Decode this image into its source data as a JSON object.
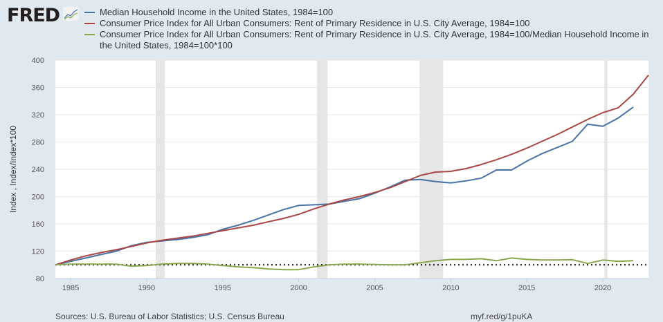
{
  "header": {
    "logo": "FRED"
  },
  "footer": {
    "sources": "Sources: U.S. Bureau of Labor Statistics; U.S. Census Bureau",
    "link": "myf.red/g/1puKA"
  },
  "chart_data": {
    "type": "line",
    "ylabel": "Index , Index/Index*100",
    "xlim": [
      1984,
      2023
    ],
    "ylim": [
      80,
      400
    ],
    "yticks": [
      80,
      120,
      160,
      200,
      240,
      280,
      320,
      360,
      400
    ],
    "xticks": [
      1985,
      1990,
      1995,
      2000,
      2005,
      2010,
      2015,
      2020
    ],
    "grid": true,
    "legend_position": "top",
    "recessions": [
      [
        1990.6,
        1991.2
      ],
      [
        2001.2,
        2001.9
      ],
      [
        2007.95,
        2009.5
      ],
      [
        2020.1,
        2020.3
      ]
    ],
    "reference_line": {
      "value": 100,
      "style": "dotted"
    },
    "x": [
      1984,
      1985,
      1986,
      1987,
      1988,
      1989,
      1990,
      1991,
      1992,
      1993,
      1994,
      1995,
      1996,
      1997,
      1998,
      1999,
      2000,
      2001,
      2002,
      2003,
      2004,
      2005,
      2006,
      2007,
      2008,
      2009,
      2010,
      2011,
      2012,
      2013,
      2014,
      2015,
      2016,
      2017,
      2018,
      2019,
      2020,
      2021,
      2022,
      2023
    ],
    "series": [
      {
        "name": "Median Household Income in the United States, 1984=100",
        "color": "#4572a7",
        "values": [
          100,
          105,
          110,
          115,
          120,
          128,
          133,
          135,
          137,
          140,
          144,
          152,
          158,
          165,
          173,
          181,
          187,
          188,
          189,
          193,
          197,
          205,
          214,
          224,
          225,
          222,
          220,
          223,
          227,
          239,
          239,
          252,
          263,
          272,
          281,
          306,
          303,
          315,
          331,
          null
        ]
      },
      {
        "name": "Consumer Price Index for All Urban Consumers: Rent of Primary Residence in U.S. City Average, 1984=100",
        "color": "#aa4643",
        "values": [
          100,
          107,
          113,
          118,
          122,
          127,
          132,
          136,
          139,
          142,
          146,
          150,
          154,
          158,
          163,
          168,
          174,
          182,
          189,
          195,
          200,
          206,
          213,
          222,
          231,
          236,
          237,
          241,
          247,
          254,
          262,
          271,
          281,
          291,
          302,
          313,
          323,
          330,
          350,
          378
        ]
      },
      {
        "name": "Consumer Price Index for All Urban Consumers: Rent of Primary Residence in U.S. City Average, 1984=100/Median Household Income in the United States, 1984=100*100",
        "color": "#89a54e",
        "values": [
          100,
          101,
          101,
          101,
          101,
          98,
          99,
          101,
          102,
          102,
          101,
          99,
          97,
          96,
          94,
          93,
          93,
          97,
          100,
          101,
          101,
          100.5,
          100,
          100,
          103,
          106,
          108,
          108,
          109,
          106,
          110,
          108,
          107,
          107,
          107.5,
          102,
          107,
          105,
          106,
          null
        ]
      }
    ]
  }
}
